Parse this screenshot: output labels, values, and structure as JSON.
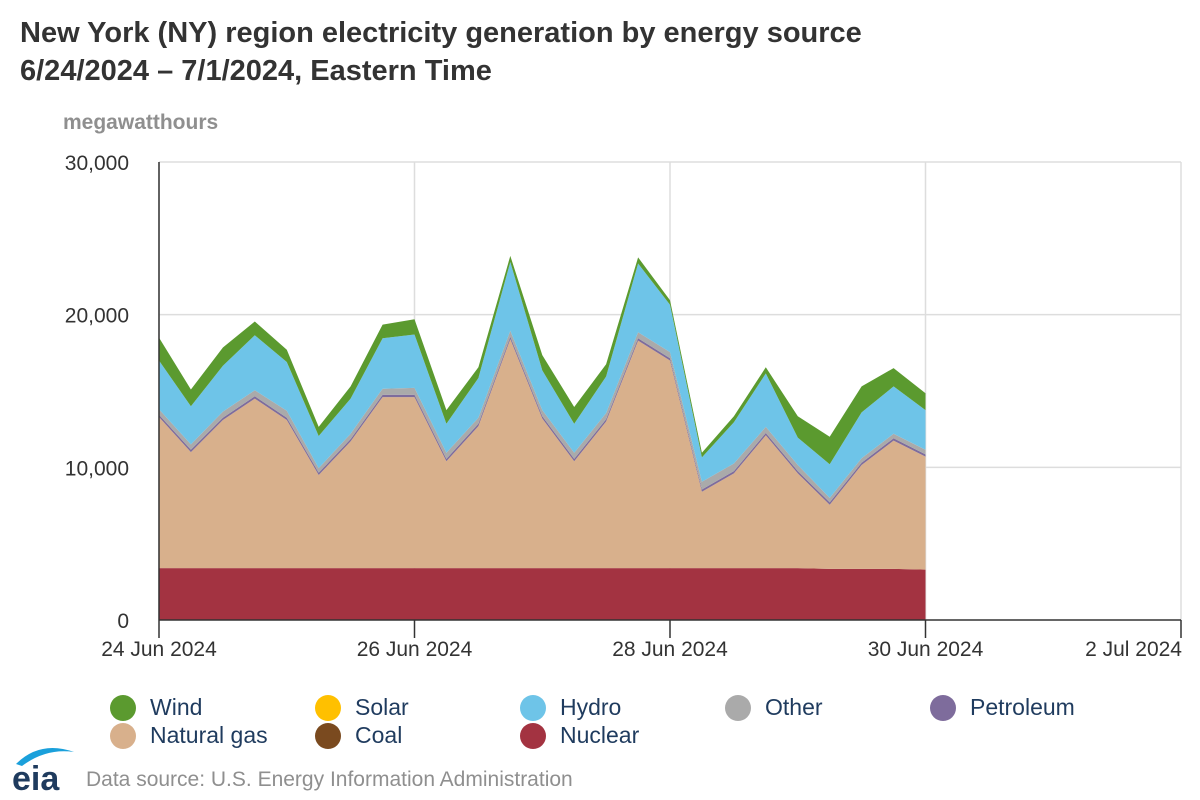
{
  "title_line1": "New York (NY) region electricity generation by energy source",
  "title_line2": "6/24/2024 – 7/1/2024, Eastern Time",
  "unit_label": "megawatthours",
  "source_text": "Data source: U.S. Energy Information Administration",
  "logo_text": "eia",
  "legend": [
    {
      "name": "Wind",
      "color": "#5b9a2f"
    },
    {
      "name": "Solar",
      "color": "#ffc000"
    },
    {
      "name": "Hydro",
      "color": "#6ec4e8"
    },
    {
      "name": "Other",
      "color": "#aaaaaa"
    },
    {
      "name": "Petroleum",
      "color": "#7e6c9c"
    },
    {
      "name": "Natural gas",
      "color": "#d8b08c"
    },
    {
      "name": "Coal",
      "color": "#7a4a1f"
    },
    {
      "name": "Nuclear",
      "color": "#a33341"
    }
  ],
  "chart_data": {
    "type": "area",
    "stacked": true,
    "title": "New York (NY) region electricity generation by energy source",
    "subtitle": "6/24/2024 – 7/1/2024, Eastern Time",
    "ylabel": "megawatthours",
    "xlabel": "",
    "ylim": [
      0,
      30000
    ],
    "y_ticks": [
      0,
      10000,
      20000,
      30000
    ],
    "y_tick_labels": [
      "0",
      "10,000",
      "20,000",
      "30,000"
    ],
    "x_range_days": [
      0,
      8
    ],
    "x_ticks": [
      0,
      2,
      4,
      6,
      8
    ],
    "x_tick_labels": [
      "24 Jun 2024",
      "26 Jun 2024",
      "28 Jun 2024",
      "30 Jun 2024",
      "2 Jul 2024"
    ],
    "x_days": [
      0,
      0.25,
      0.5,
      0.75,
      1,
      1.25,
      1.5,
      1.75,
      2,
      2.25,
      2.5,
      2.75,
      3,
      3.25,
      3.5,
      3.75,
      4,
      4.25,
      4.5,
      4.75,
      5,
      5.25,
      5.5,
      5.75,
      6
    ],
    "series": [
      {
        "name": "Nuclear",
        "values": [
          3400,
          3400,
          3400,
          3400,
          3400,
          3400,
          3400,
          3400,
          3400,
          3400,
          3400,
          3400,
          3400,
          3400,
          3400,
          3400,
          3400,
          3400,
          3400,
          3400,
          3400,
          3350,
          3350,
          3350,
          3300
        ]
      },
      {
        "name": "Coal",
        "values": [
          0,
          0,
          0,
          0,
          0,
          0,
          0,
          0,
          0,
          0,
          0,
          0,
          0,
          0,
          0,
          0,
          0,
          0,
          0,
          0,
          0,
          0,
          0,
          0,
          0
        ]
      },
      {
        "name": "Natural gas",
        "values": [
          9900,
          7600,
          9700,
          11100,
          9700,
          6100,
          8300,
          11200,
          11200,
          7000,
          9300,
          15000,
          9800,
          7000,
          9600,
          14900,
          13600,
          5000,
          6200,
          8700,
          6200,
          4200,
          6800,
          8400,
          7400
        ]
      },
      {
        "name": "Petroleum",
        "values": [
          150,
          150,
          150,
          150,
          150,
          150,
          150,
          150,
          150,
          150,
          150,
          150,
          150,
          150,
          150,
          150,
          150,
          150,
          150,
          150,
          150,
          150,
          150,
          150,
          150
        ]
      },
      {
        "name": "Other",
        "values": [
          350,
          350,
          400,
          400,
          450,
          300,
          350,
          400,
          450,
          400,
          400,
          400,
          400,
          400,
          400,
          400,
          400,
          500,
          500,
          400,
          400,
          300,
          300,
          300,
          300
        ]
      },
      {
        "name": "Hydro",
        "values": [
          3200,
          2500,
          3000,
          3600,
          3200,
          2100,
          2300,
          3300,
          3500,
          1900,
          2600,
          4500,
          2600,
          1900,
          2400,
          4500,
          3100,
          1600,
          2700,
          3500,
          1800,
          2200,
          3000,
          3100,
          2600
        ]
      },
      {
        "name": "Solar",
        "values": [
          0,
          0,
          0,
          0,
          0,
          0,
          0,
          0,
          0,
          0,
          0,
          0,
          0,
          0,
          0,
          0,
          0,
          0,
          0,
          0,
          0,
          0,
          0,
          0,
          0
        ]
      },
      {
        "name": "Wind",
        "values": [
          1500,
          1100,
          1200,
          900,
          800,
          600,
          800,
          900,
          1000,
          900,
          700,
          400,
          1000,
          1100,
          800,
          400,
          300,
          300,
          400,
          400,
          1400,
          1800,
          1700,
          1200,
          1100
        ]
      }
    ]
  }
}
